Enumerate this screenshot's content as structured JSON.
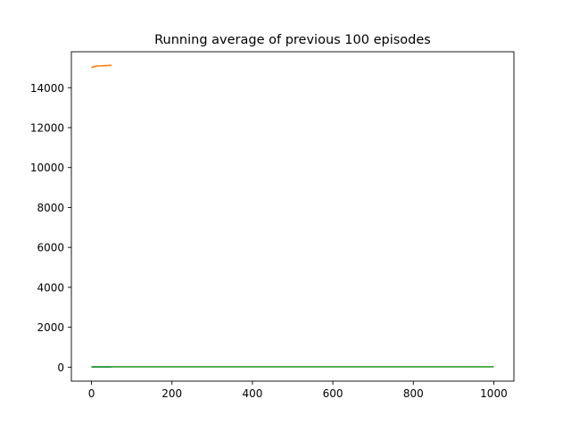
{
  "chart_data": {
    "type": "line",
    "title": "Running average of previous 100 episodes",
    "xlabel": "",
    "ylabel": "",
    "xlim": [
      -50,
      1050
    ],
    "ylim": [
      -700,
      15800
    ],
    "x_ticks": [
      0,
      200,
      400,
      600,
      800,
      1000
    ],
    "y_ticks": [
      0,
      2000,
      4000,
      6000,
      8000,
      10000,
      12000,
      14000
    ],
    "grid": false,
    "legend": false,
    "series": [
      {
        "color": "#1f77b4",
        "x": [
          0,
          10,
          20,
          30,
          40,
          50
        ],
        "y": [
          5,
          5,
          6,
          6,
          7,
          7
        ]
      },
      {
        "color": "#ff7f0e",
        "x": [
          0,
          2,
          4,
          6,
          8,
          10,
          15,
          20,
          30,
          40,
          50
        ],
        "y": [
          15000,
          15020,
          15040,
          15060,
          15050,
          15080,
          15090,
          15090,
          15100,
          15110,
          15120
        ]
      },
      {
        "color": "#2ca02c",
        "x": [
          0,
          200,
          400,
          600,
          800,
          1000
        ],
        "y": [
          20,
          20,
          20,
          20,
          20,
          20
        ]
      }
    ]
  }
}
